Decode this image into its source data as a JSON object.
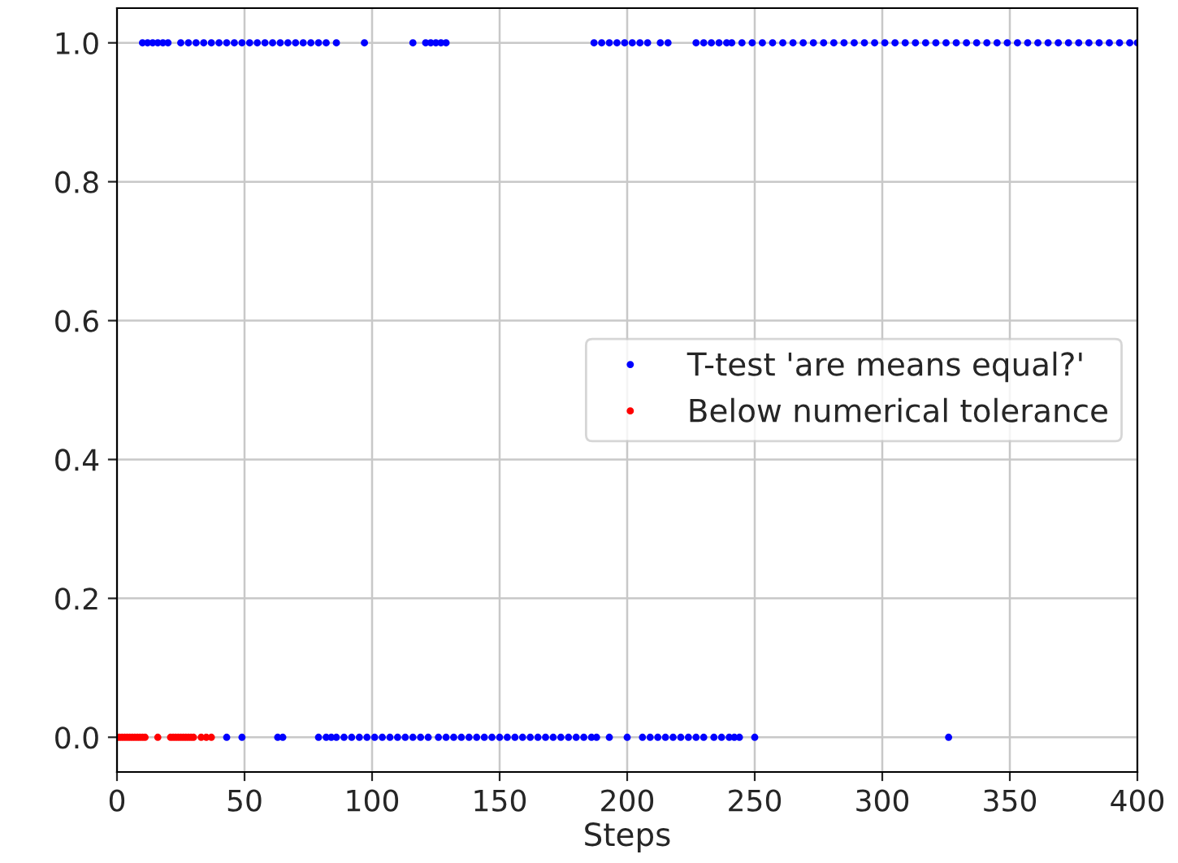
{
  "chart_data": {
    "type": "scatter",
    "xlabel": "Steps",
    "xlim": [
      0,
      400
    ],
    "xticks": [
      0,
      50,
      100,
      150,
      200,
      250,
      300,
      350,
      400
    ],
    "ylim": [
      -0.05,
      1.05
    ],
    "yticks": [
      {
        "value": 0,
        "label": "0.0"
      },
      {
        "value": 0.2,
        "label": "0.2"
      },
      {
        "value": 0.4,
        "label": "0.4"
      },
      {
        "value": 0.6,
        "label": "0.6"
      },
      {
        "value": 0.8,
        "label": "0.8"
      },
      {
        "value": 1,
        "label": "1.0"
      }
    ],
    "grid": true,
    "legend": "right",
    "marker": "circle",
    "series": [
      {
        "name": "T-test 'are means equal?'",
        "color": "#0000ff",
        "x": [
          10,
          12,
          14,
          16,
          18,
          20,
          25,
          28,
          31,
          34,
          37,
          40,
          43,
          46,
          49,
          52,
          55,
          58,
          61,
          64,
          67,
          70,
          73,
          76,
          79,
          82,
          86,
          97,
          116,
          121,
          123,
          125,
          127,
          129,
          187,
          190,
          193,
          196,
          199,
          202,
          205,
          208,
          213,
          216,
          227,
          230,
          233,
          236,
          239,
          241,
          245,
          249,
          253,
          257,
          261,
          265,
          269,
          273,
          277,
          281,
          285,
          289,
          293,
          297,
          301,
          305,
          309,
          313,
          317,
          321,
          325,
          329,
          333,
          337,
          341,
          345,
          349,
          353,
          357,
          361,
          365,
          369,
          373,
          377,
          381,
          385,
          389,
          393,
          397,
          400,
          43,
          49,
          63,
          65,
          79,
          82,
          84,
          86,
          89,
          92,
          95,
          98,
          101,
          104,
          107,
          110,
          113,
          116,
          119,
          122,
          126,
          129,
          132,
          135,
          138,
          141,
          144,
          147,
          150,
          153,
          156,
          159,
          162,
          165,
          168,
          171,
          174,
          177,
          180,
          183,
          186,
          188,
          193,
          200,
          206,
          209,
          212,
          215,
          218,
          221,
          224,
          227,
          230,
          234,
          237,
          240,
          242,
          244,
          250,
          326
        ],
        "values": [
          1,
          1,
          1,
          1,
          1,
          1,
          1,
          1,
          1,
          1,
          1,
          1,
          1,
          1,
          1,
          1,
          1,
          1,
          1,
          1,
          1,
          1,
          1,
          1,
          1,
          1,
          1,
          1,
          1,
          1,
          1,
          1,
          1,
          1,
          1,
          1,
          1,
          1,
          1,
          1,
          1,
          1,
          1,
          1,
          1,
          1,
          1,
          1,
          1,
          1,
          1,
          1,
          1,
          1,
          1,
          1,
          1,
          1,
          1,
          1,
          1,
          1,
          1,
          1,
          1,
          1,
          1,
          1,
          1,
          1,
          1,
          1,
          1,
          1,
          1,
          1,
          1,
          1,
          1,
          1,
          1,
          1,
          1,
          1,
          1,
          1,
          1,
          1,
          1,
          1,
          0,
          0,
          0,
          0,
          0,
          0,
          0,
          0,
          0,
          0,
          0,
          0,
          0,
          0,
          0,
          0,
          0,
          0,
          0,
          0,
          0,
          0,
          0,
          0,
          0,
          0,
          0,
          0,
          0,
          0,
          0,
          0,
          0,
          0,
          0,
          0,
          0,
          0,
          0,
          0,
          0,
          0,
          0,
          0,
          0,
          0,
          0,
          0,
          0,
          0,
          0,
          0,
          0,
          0,
          0,
          0,
          0,
          0,
          0,
          0
        ]
      },
      {
        "name": "Below numerical tolerance",
        "color": "#ff0000",
        "x": [
          0,
          1,
          2,
          3,
          4,
          5,
          6,
          7,
          8,
          9,
          10,
          11,
          16,
          21,
          22,
          23,
          24,
          25,
          26,
          27,
          28,
          29,
          30,
          33,
          35,
          37
        ],
        "values": [
          0,
          0,
          0,
          0,
          0,
          0,
          0,
          0,
          0,
          0,
          0,
          0,
          0,
          0,
          0,
          0,
          0,
          0,
          0,
          0,
          0,
          0,
          0,
          0,
          0,
          0
        ]
      }
    ]
  }
}
